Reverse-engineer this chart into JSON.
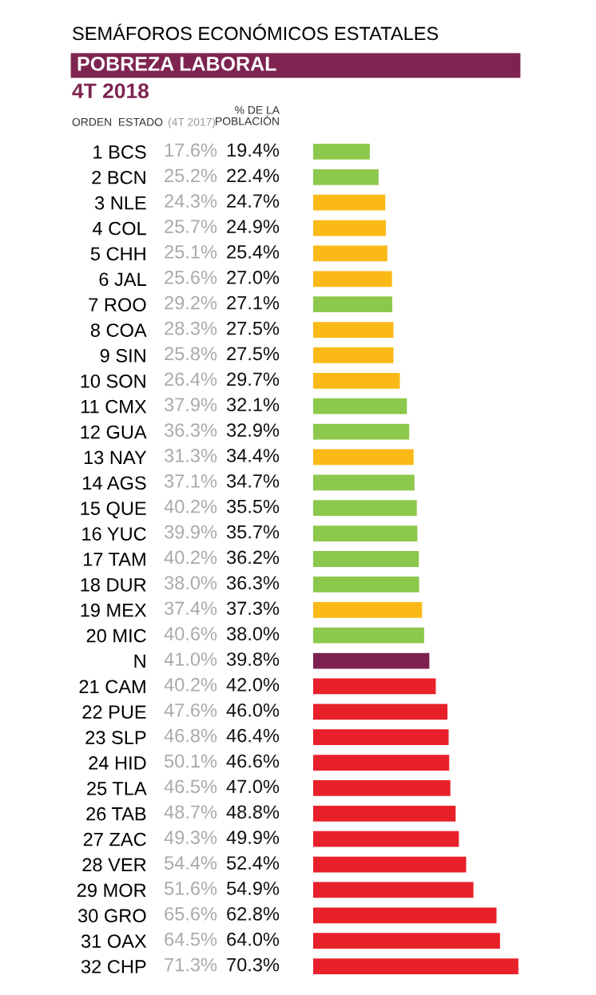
{
  "chart_data": {
    "type": "bar",
    "orientation": "horizontal",
    "title": "SEMÁFOROS ECONÓMICOS ESTATALES",
    "subtitle": "POBREZA LABORAL",
    "categories": [
      "1 BCS",
      "2 BCN",
      "3 NLE",
      "4 COL",
      "5 CHH",
      "6 JAL",
      "7 ROO",
      "8 COA",
      "9 SIN",
      "10 SON",
      "11 CMX",
      "12 GUA",
      "13 NAY",
      "14 AGS",
      "15 QUE",
      "16 YUC",
      "17 TAM",
      "18 DUR",
      "19 MEX",
      "20 MIC",
      "N",
      "21 CAM",
      "22 PUE",
      "23 SLP",
      "24 HID",
      "25 TLA",
      "26 TAB",
      "27 ZAC",
      "28 VER",
      "29 MOR",
      "30 GRO",
      "31 OAX",
      "32 CHP"
    ],
    "values": [
      19.4,
      22.4,
      24.7,
      24.9,
      25.4,
      27.0,
      27.1,
      27.5,
      27.5,
      29.7,
      32.1,
      32.9,
      34.4,
      34.7,
      35.5,
      35.7,
      36.2,
      36.3,
      37.3,
      38.0,
      39.8,
      42.0,
      46.0,
      46.4,
      46.6,
      47.0,
      48.8,
      49.9,
      52.4,
      54.9,
      62.8,
      64.0,
      70.3
    ],
    "colors": [
      "#8cc84b",
      "#8cc84b",
      "#fbb917",
      "#fbb917",
      "#fbb917",
      "#fbb917",
      "#8cc84b",
      "#fbb917",
      "#fbb917",
      "#fbb917",
      "#8cc84b",
      "#8cc84b",
      "#fbb917",
      "#8cc84b",
      "#8cc84b",
      "#8cc84b",
      "#8cc84b",
      "#8cc84b",
      "#fbb917",
      "#8cc84b",
      "#7e2152",
      "#e8202a",
      "#e8202a",
      "#e8202a",
      "#e8202a",
      "#e8202a",
      "#e8202a",
      "#e8202a",
      "#e8202a",
      "#e8202a",
      "#e8202a",
      "#e8202a",
      "#e8202a"
    ],
    "value_labels": [
      "19.4%",
      "22.4%",
      "24.7%",
      "24.9%",
      "25.4%",
      "27.0%",
      "27.1%",
      "27.5%",
      "27.5%",
      "29.7%",
      "32.1%",
      "32.9%",
      "34.4%",
      "34.7%",
      "35.5%",
      "35.7%",
      "36.2%",
      "36.3%",
      "37.3%",
      "38.0%",
      "39.8%",
      "42.0%",
      "46.0%",
      "46.4%",
      "46.6%",
      "47.0%",
      "48.8%",
      "49.9%",
      "52.4%",
      "54.9%",
      "62.8%",
      "64.0%",
      "70.3%"
    ],
    "tick_labels": "y",
    "annotations": [
      "4T 2018",
      "ORDEN  ESTADO",
      "(4T 2017)",
      "% DE LA\nPOBLACIÓN",
      "17.6%",
      "25.2%",
      "24.3%",
      "25.7%",
      "25.1%",
      "25.6%",
      "29.2%",
      "28.3%",
      "25.8%",
      "26.4%",
      "37.9%",
      "36.3%",
      "31.3%",
      "37.1%",
      "40.2%",
      "39.9%",
      "40.2%",
      "38.0%",
      "37.4%",
      "40.6%",
      "41.0%",
      "40.2%",
      "47.6%",
      "46.8%",
      "50.1%",
      "46.5%",
      "48.7%",
      "49.3%",
      "54.4%",
      "51.6%",
      "65.6%",
      "64.5%",
      "71.3%"
    ]
  }
}
